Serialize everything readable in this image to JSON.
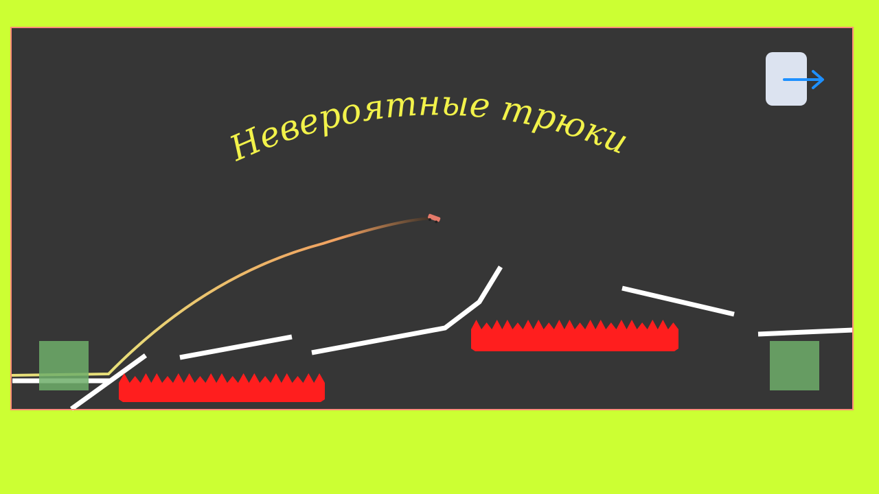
{
  "page": {
    "outer_background": "#CCFF33"
  },
  "game": {
    "title": "Невероятные трюки",
    "background": "#363636",
    "border_color": "#FF8C7A",
    "title_color": "#F2F24A",
    "track_color": "#FFFFFF",
    "hazard_color": "#FF1E1E",
    "checkpoint_color": "#6FAE6A",
    "trail_start_color": "#E8E07A",
    "trail_end_color": "#3A3028",
    "car_color": "#E57A6A",
    "hazards": [
      {
        "name": "spikes-left"
      },
      {
        "name": "spikes-right"
      }
    ],
    "checkpoints": [
      {
        "name": "start-pad"
      },
      {
        "name": "finish-pad"
      }
    ]
  },
  "controls": {
    "exit_button": {
      "icon": "arrow-right-icon",
      "background": "#DCE3F0",
      "arrow_color": "#1E90FF"
    }
  }
}
